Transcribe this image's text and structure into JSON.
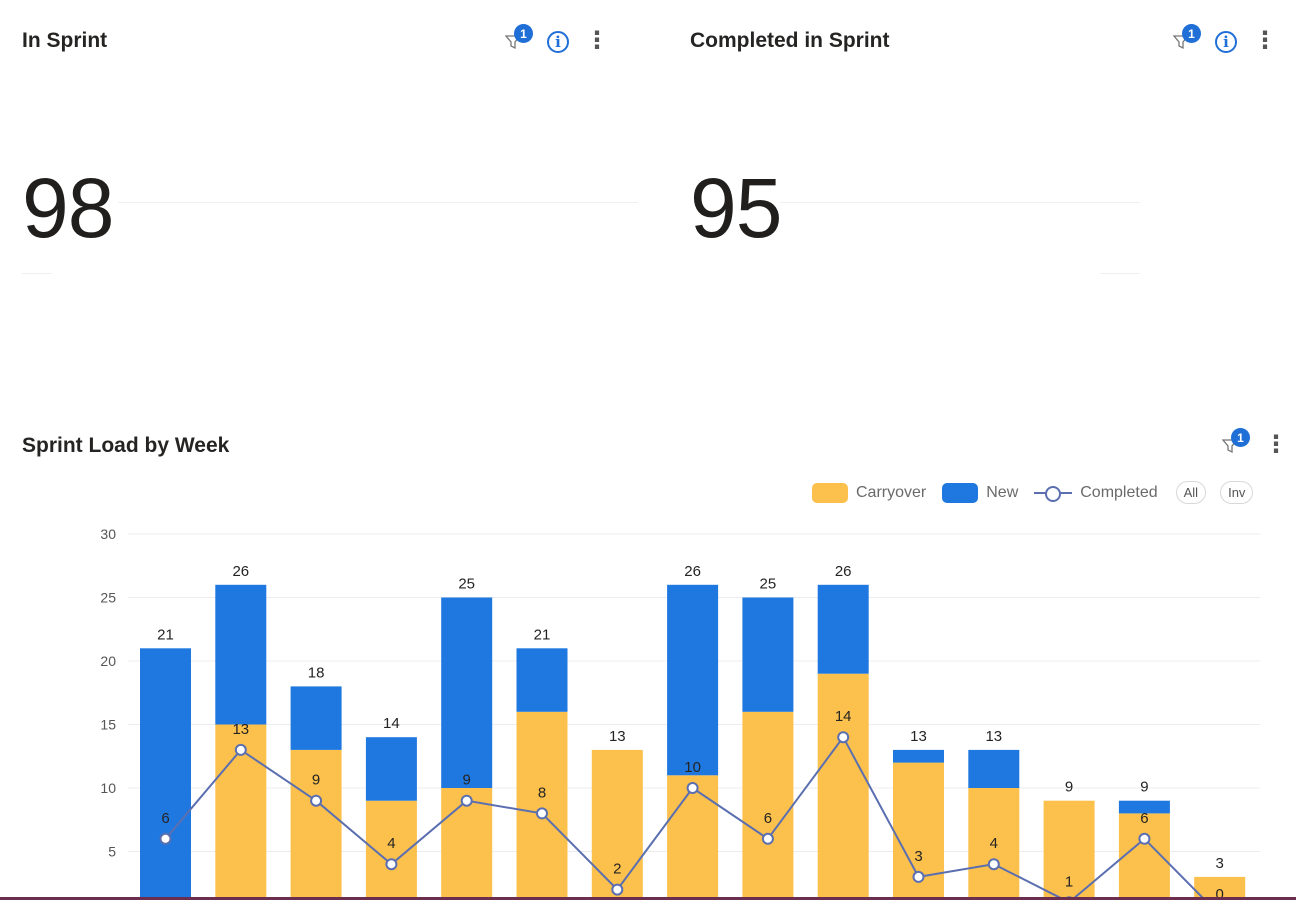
{
  "cards": {
    "in_sprint": {
      "title": "In Sprint",
      "value": "98",
      "filter_count": "1"
    },
    "completed": {
      "title": "Completed in Sprint",
      "value": "95",
      "filter_count": "1"
    }
  },
  "chart_card": {
    "title": "Sprint Load by Week",
    "filter_count": "1"
  },
  "legend": {
    "carryover": "Carryover",
    "new": "New",
    "completed": "Completed",
    "all": "All",
    "inv": "Inv"
  },
  "colors": {
    "carryover": "#fcc04c",
    "new": "#1f78e0",
    "completed": "#5b6fb0"
  },
  "icons": {
    "filter": "filter-icon",
    "info": "info-icon",
    "more": "more-vertical-icon"
  },
  "chart_data": {
    "type": "bar",
    "stacked": true,
    "title": "Sprint Load by Week",
    "ylim": [
      0,
      30
    ],
    "yticks": [
      5,
      10,
      15,
      20,
      25,
      30
    ],
    "grid": true,
    "legend_position": "top-right",
    "categories": [
      "",
      "",
      "",
      "",
      "",
      "",
      "",
      "",
      "",
      "",
      "",
      "",
      "",
      "",
      ""
    ],
    "series": [
      {
        "name": "Carryover",
        "kind": "bar",
        "values": [
          0,
          15,
          13,
          9,
          10,
          16,
          13,
          11,
          16,
          19,
          12,
          10,
          9,
          8,
          3
        ]
      },
      {
        "name": "New",
        "kind": "bar",
        "values": [
          21,
          11,
          5,
          5,
          15,
          5,
          0,
          15,
          9,
          7,
          1,
          3,
          0,
          1,
          0
        ]
      },
      {
        "name": "Completed",
        "kind": "line",
        "values": [
          6,
          13,
          9,
          4,
          9,
          8,
          2,
          10,
          6,
          14,
          3,
          4,
          1,
          6,
          0
        ]
      }
    ],
    "totals": [
      21,
      26,
      18,
      14,
      25,
      21,
      13,
      26,
      25,
      26,
      13,
      13,
      9,
      9,
      3
    ]
  }
}
